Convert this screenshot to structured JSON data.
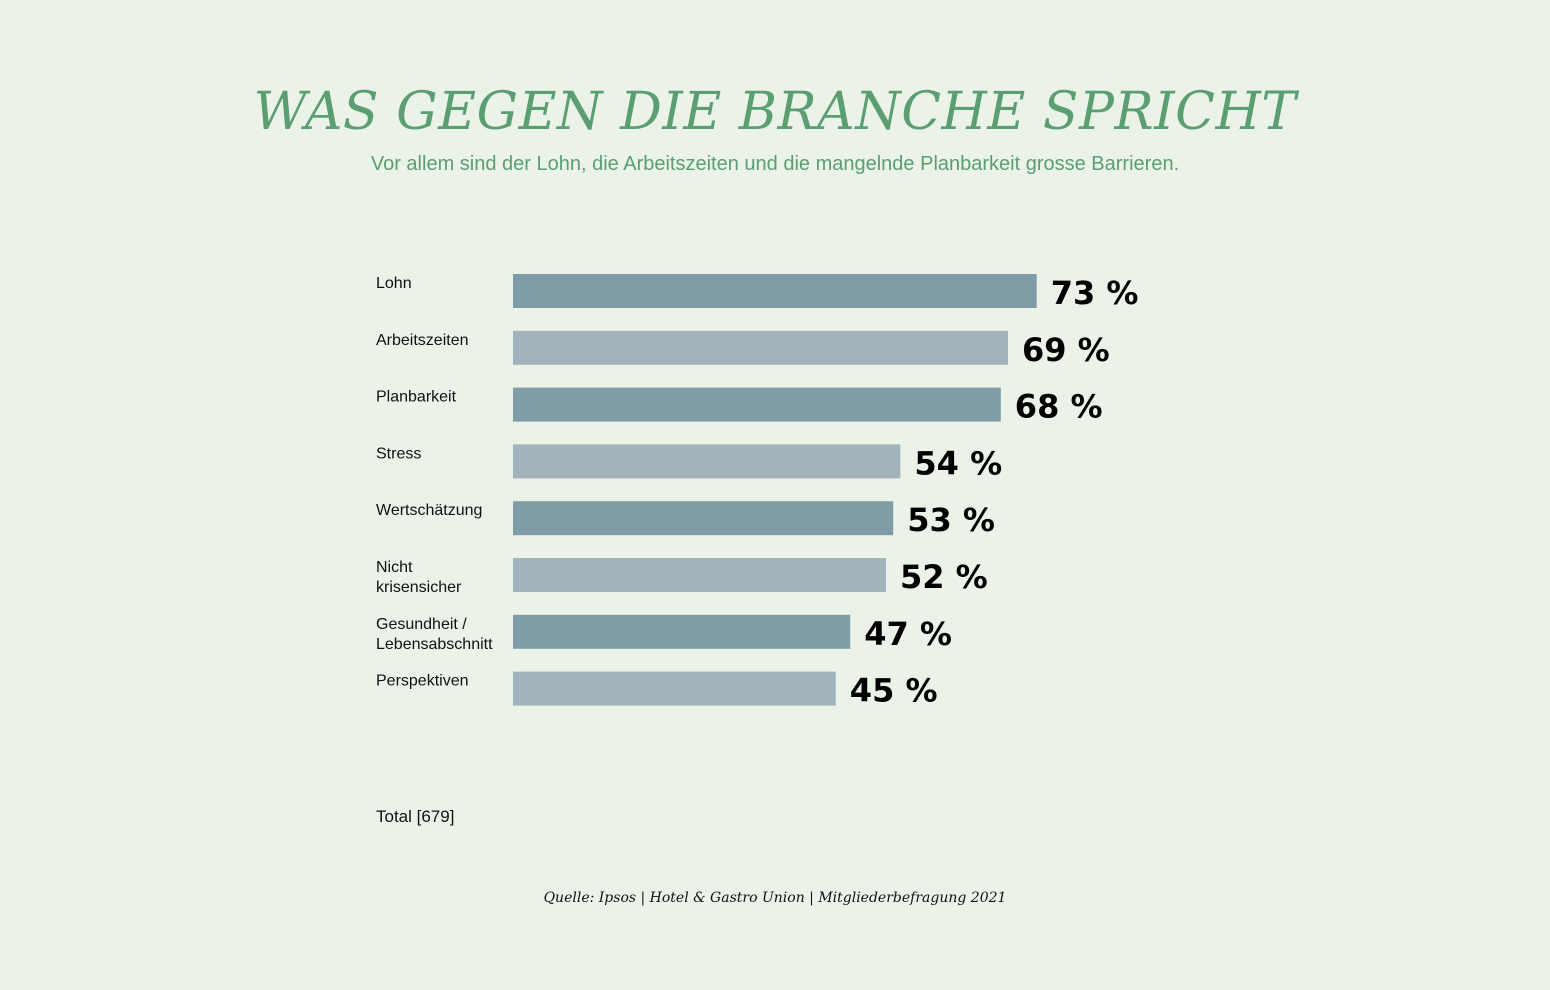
{
  "title": "WAS GEGEN DIE BRANCHE SPRICHT",
  "subtitle": "Vor allem sind der Lohn, die Arbeitszeiten und die mangelnde Planbarkeit grosse Barrieren.",
  "total_label": "Total [679]",
  "source": "Quelle: Ipsos | Hotel & Gastro Union | Mitgliederbefragung 2021",
  "colors": {
    "accent": "#5a9e72",
    "bar_dark": "#809ca7",
    "bar_light": "#a2b3bb",
    "background": "#ebf2e8",
    "text": "#111111"
  },
  "chart_data": {
    "type": "bar",
    "orientation": "horizontal",
    "unit": "%",
    "categories": [
      [
        "Lohn"
      ],
      [
        "Arbeitszeiten"
      ],
      [
        "Planbarkeit"
      ],
      [
        "Stress"
      ],
      [
        "Wertschätzung"
      ],
      [
        "Nicht",
        "krisensicher"
      ],
      [
        "Gesundheit /",
        "Lebensabschnitt"
      ],
      [
        "Perspektiven"
      ]
    ],
    "values": [
      73,
      69,
      68,
      54,
      53,
      52,
      47,
      45
    ],
    "value_labels": [
      "73 %",
      "69 %",
      "68 %",
      "54 %",
      "53 %",
      "52 %",
      "47 %",
      "45 %"
    ],
    "xlim": [
      0,
      100
    ]
  }
}
